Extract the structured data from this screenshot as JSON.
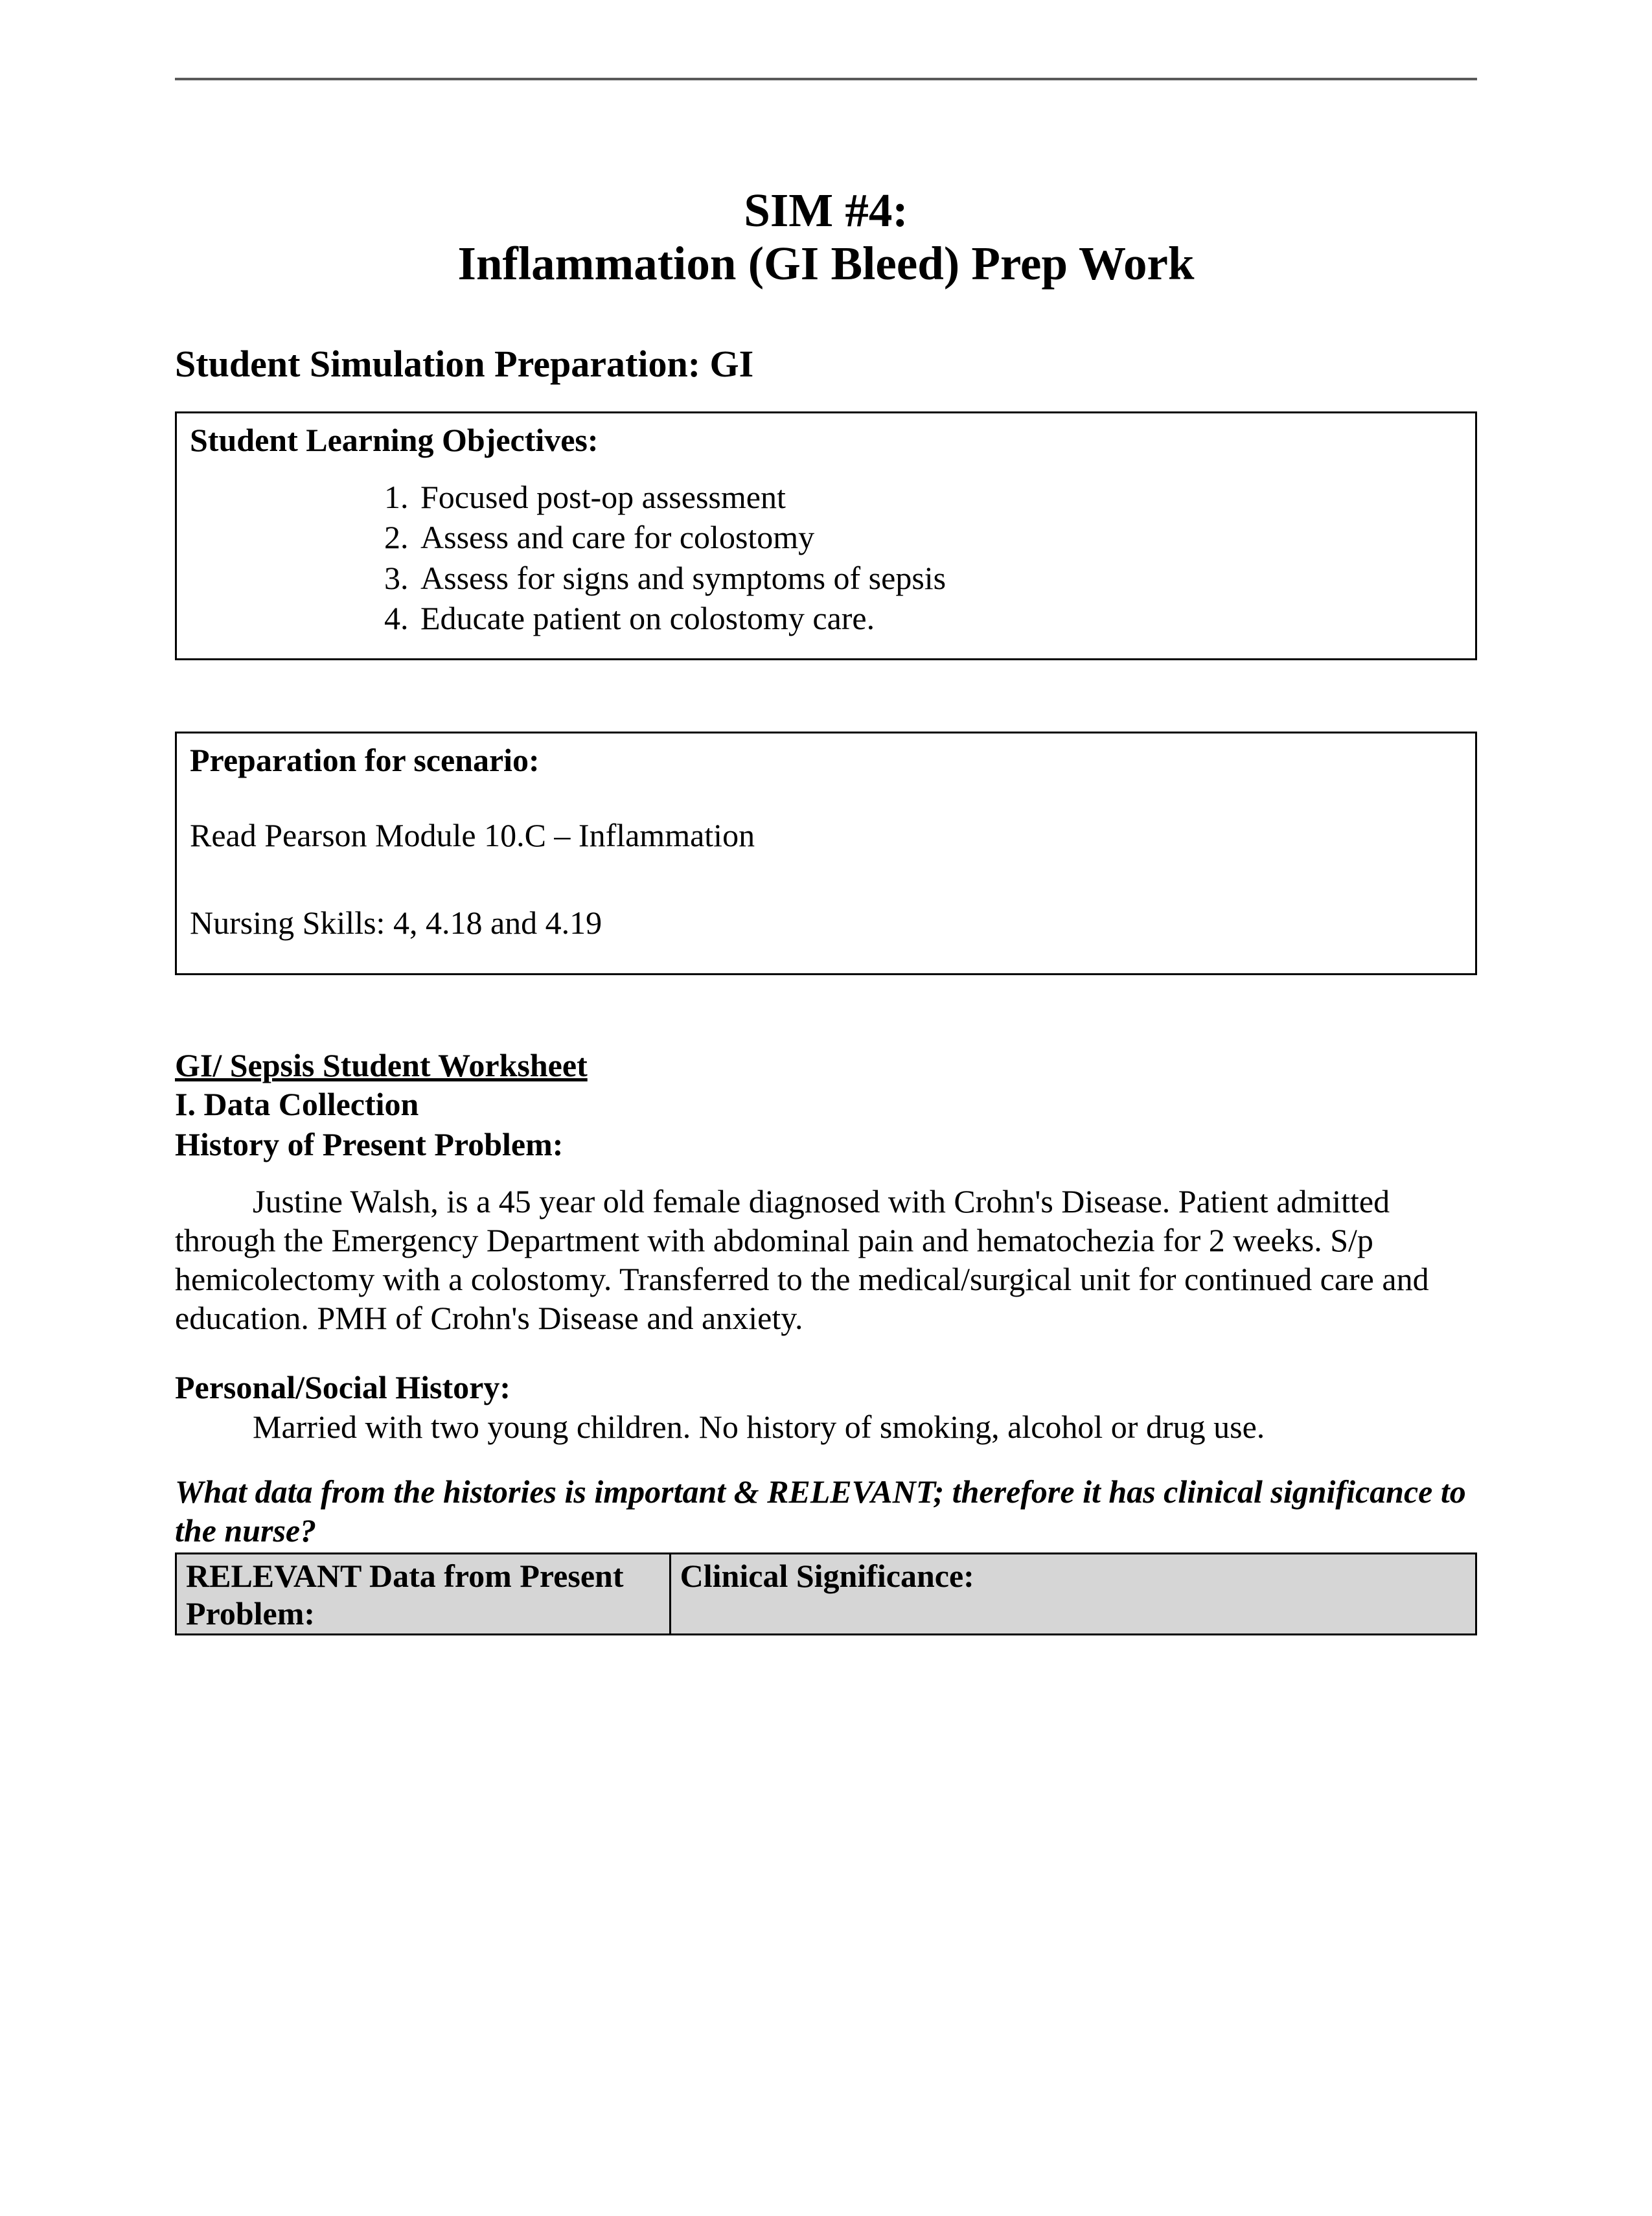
{
  "colors": {
    "page_background": "#ffffff",
    "text": "#000000",
    "rule": "#5a5a5a",
    "table_header_bg": "#d6d6d6",
    "border": "#000000"
  },
  "typography": {
    "family": "Times New Roman",
    "title_size_pt": 28,
    "heading_size_pt": 22,
    "body_size_pt": 19
  },
  "title": {
    "line1": "SIM #4:",
    "line2": "Inflammation (GI Bleed) Prep Work"
  },
  "section_heading": "Student Simulation Preparation: GI",
  "objectives_box": {
    "title": "Student Learning Objectives:",
    "items": [
      "Focused post-op assessment",
      "Assess and care for colostomy",
      "Assess for signs and symptoms of sepsis",
      "Educate patient on colostomy care."
    ]
  },
  "preparation_box": {
    "title": "Preparation for scenario:",
    "line1": "Read Pearson Module 10.C – Inflammation",
    "line2": "Nursing Skills: 4, 4.18 and 4.19"
  },
  "worksheet": {
    "title": "GI/ Sepsis Student Worksheet",
    "section1": "I. Data Collection",
    "hpp_heading": "History of Present Problem:",
    "hpp_text": "Justine Walsh, is a 45 year old female diagnosed with Crohn's Disease. Patient admitted through the Emergency Department with abdominal pain and hematochezia for 2 weeks. S/p hemicolectomy with a colostomy. Transferred to the medical/surgical unit for continued care and education. PMH of Crohn's Disease and anxiety.",
    "psh_heading": "Personal/Social History:",
    "psh_text": "Married with two young children. No history of smoking, alcohol or drug use.",
    "question": "What data from the histories is important & RELEVANT; therefore it has clinical significance to the nurse?"
  },
  "table": {
    "columns": [
      "RELEVANT Data from Present Problem:",
      "Clinical Significance:"
    ],
    "col_widths_pct": [
      38,
      62
    ],
    "header_bg": "#d6d6d6",
    "border_color": "#000000"
  }
}
